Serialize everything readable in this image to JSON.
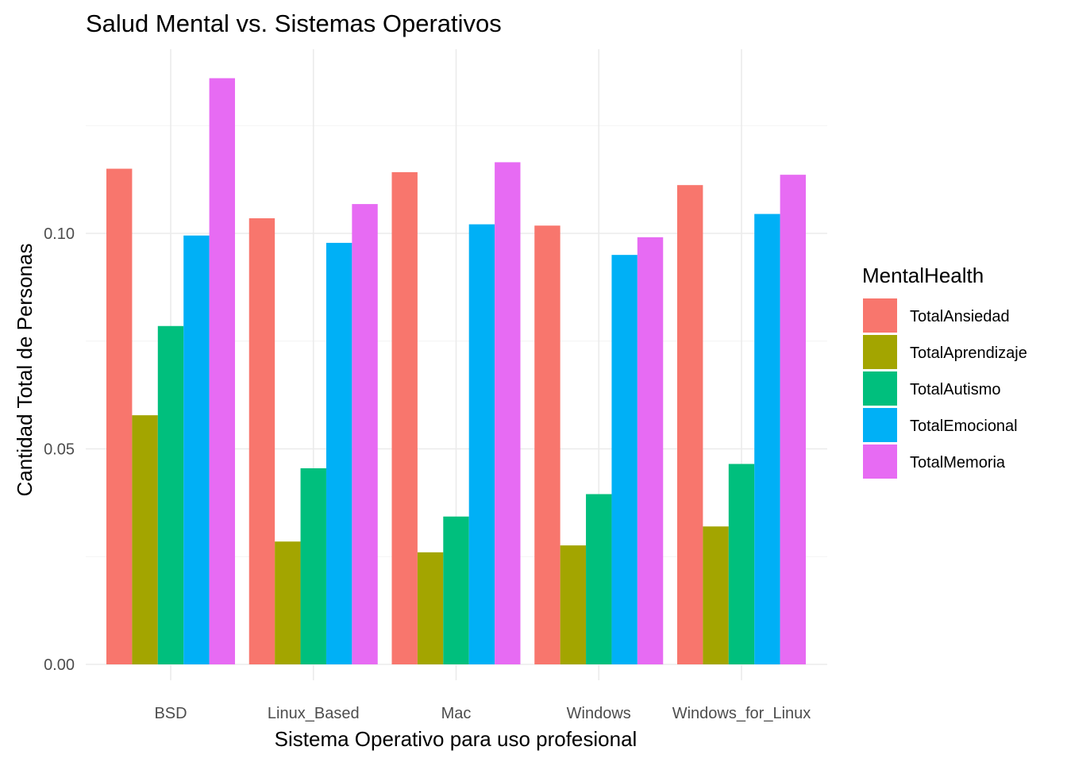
{
  "chart_data": {
    "type": "bar",
    "title": "Salud Mental vs. Sistemas Operativos",
    "xlabel": "Sistema Operativo para uso profesional",
    "ylabel": "Cantidad Total de Personas",
    "ylim": [
      0,
      0.137
    ],
    "yticks": [
      0.0,
      0.05,
      0.1
    ],
    "ytick_labels": [
      "0.00",
      "0.05",
      "0.10"
    ],
    "grid": true,
    "legend_position": "right",
    "legend_title": "MentalHealth",
    "categories": [
      "BSD",
      "Linux_Based",
      "Mac",
      "Windows",
      "Windows_for_Linux"
    ],
    "series": [
      {
        "name": "TotalAnsiedad",
        "color": "#F8766D",
        "values": [
          0.115,
          0.1035,
          0.1142,
          0.1018,
          0.1112
        ]
      },
      {
        "name": "TotalAprendizaje",
        "color": "#A3A500",
        "values": [
          0.0578,
          0.0285,
          0.026,
          0.0276,
          0.032
        ]
      },
      {
        "name": "TotalAutismo",
        "color": "#00BF7D",
        "values": [
          0.0785,
          0.0455,
          0.0343,
          0.0395,
          0.0465
        ]
      },
      {
        "name": "TotalEmocional",
        "color": "#00B0F6",
        "values": [
          0.0995,
          0.0978,
          0.1021,
          0.095,
          0.1045
        ]
      },
      {
        "name": "TotalMemoria",
        "color": "#E76BF3",
        "values": [
          0.136,
          0.1068,
          0.1165,
          0.0991,
          0.1136
        ]
      }
    ]
  }
}
